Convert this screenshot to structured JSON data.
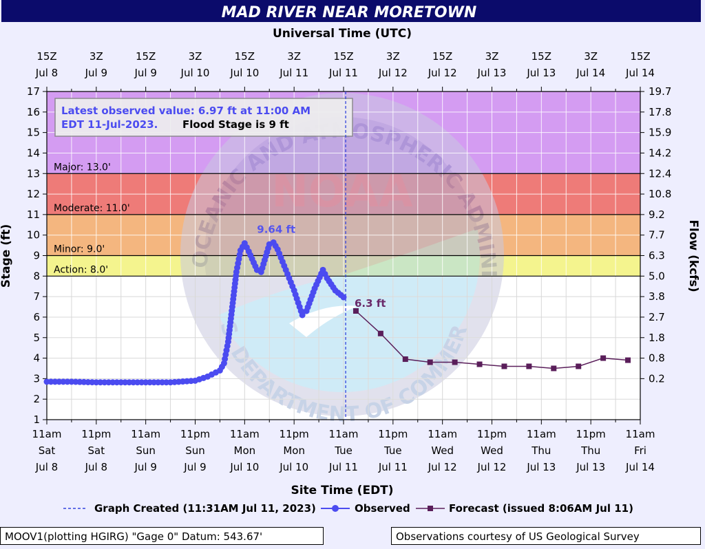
{
  "chart_data": {
    "type": "line",
    "title": "MAD RIVER NEAR MORETOWN",
    "top_axis_title": "Universal Time (UTC)",
    "xlabel": "Site Time (EDT)",
    "ylabel": "Stage (ft)",
    "y2label": "Flow (kcfs)",
    "ylim": [
      1,
      17
    ],
    "yticks": [
      1,
      2,
      3,
      4,
      5,
      6,
      7,
      8,
      9,
      10,
      11,
      12,
      13,
      14,
      15,
      16,
      17
    ],
    "y2_ticks": [
      {
        "stage": 17,
        "label": "19.7"
      },
      {
        "stage": 16,
        "label": "17.8"
      },
      {
        "stage": 15,
        "label": "15.9"
      },
      {
        "stage": 14,
        "label": "14.2"
      },
      {
        "stage": 13,
        "label": "12.4"
      },
      {
        "stage": 12,
        "label": "10.8"
      },
      {
        "stage": 11,
        "label": "9.2"
      },
      {
        "stage": 10,
        "label": "7.7"
      },
      {
        "stage": 9,
        "label": "6.3"
      },
      {
        "stage": 8,
        "label": "5.0"
      },
      {
        "stage": 7,
        "label": "3.8"
      },
      {
        "stage": 6,
        "label": "2.7"
      },
      {
        "stage": 5,
        "label": "1.8"
      },
      {
        "stage": 4,
        "label": "0.8"
      },
      {
        "stage": 3,
        "label": "0.2"
      }
    ],
    "bottom_ticks": [
      [
        "11am",
        "Sat",
        "Jul 8"
      ],
      [
        "11pm",
        "Sat",
        "Jul 8"
      ],
      [
        "11am",
        "Sun",
        "Jul 9"
      ],
      [
        "11pm",
        "Sun",
        "Jul 9"
      ],
      [
        "11am",
        "Mon",
        "Jul 10"
      ],
      [
        "11pm",
        "Mon",
        "Jul 10"
      ],
      [
        "11am",
        "Tue",
        "Jul 11"
      ],
      [
        "11pm",
        "Tue",
        "Jul 11"
      ],
      [
        "11am",
        "Wed",
        "Jul 12"
      ],
      [
        "11pm",
        "Wed",
        "Jul 12"
      ],
      [
        "11am",
        "Thu",
        "Jul 13"
      ],
      [
        "11pm",
        "Thu",
        "Jul 13"
      ],
      [
        "11am",
        "Fri",
        "Jul 14"
      ]
    ],
    "top_ticks": [
      [
        "15Z",
        "Jul 8"
      ],
      [
        "3Z",
        "Jul 9"
      ],
      [
        "15Z",
        "Jul 9"
      ],
      [
        "3Z",
        "Jul 10"
      ],
      [
        "15Z",
        "Jul 10"
      ],
      [
        "3Z",
        "Jul 11"
      ],
      [
        "15Z",
        "Jul 11"
      ],
      [
        "3Z",
        "Jul 12"
      ],
      [
        "15Z",
        "Jul 12"
      ],
      [
        "3Z",
        "Jul 13"
      ],
      [
        "15Z",
        "Jul 13"
      ],
      [
        "3Z",
        "Jul 14"
      ],
      [
        "15Z",
        "Jul 14"
      ]
    ],
    "bands": [
      {
        "from": 13,
        "to": 17,
        "color": "#d49cf2",
        "label": "Major: 13.0'"
      },
      {
        "from": 11,
        "to": 13,
        "color": "#ee7b78",
        "label": "Moderate: 11.0'"
      },
      {
        "from": 9,
        "to": 11,
        "color": "#f4b67f",
        "label": "Minor: 9.0'"
      },
      {
        "from": 8,
        "to": 9,
        "color": "#f4f48e",
        "label": "Action: 8.0'"
      }
    ],
    "info_box": {
      "observed": "Latest observed value: 6.97 ft at 11:00 AM",
      "observed_line2": "EDT 11-Jul-2023.",
      "flood_stage": "Flood Stage is 9 ft"
    },
    "annotations": [
      {
        "text": "9.64 ft",
        "x": "Jul 10 5pm",
        "y": 9.64,
        "color": "#5555ee"
      },
      {
        "text": "6.3 ft",
        "x": "Jul 11 12pm",
        "y": 6.3,
        "color": "#6a2a6a"
      }
    ],
    "graph_created": "Jul 11 11:31am",
    "colors": {
      "observed": "#4b4bf0",
      "forecast": "#5a1e5a",
      "created_line": "#3344dd",
      "title_bg": "#0b0b6b"
    },
    "series": [
      {
        "name": "Observed",
        "x": [
          "Jul 8 11am",
          "Jul 8 5pm",
          "Jul 8 11pm",
          "Jul 9 5am",
          "Jul 9 11am",
          "Jul 9 5pm",
          "Jul 9 11pm",
          "Jul 10 2am",
          "Jul 10 5am",
          "Jul 10 6am",
          "Jul 10 7am",
          "Jul 10 8am",
          "Jul 10 9am",
          "Jul 10 10am",
          "Jul 10 11am",
          "Jul 10 12pm",
          "Jul 10 2pm",
          "Jul 10 3pm",
          "Jul 10 5pm",
          "Jul 10 6pm",
          "Jul 10 7pm",
          "Jul 10 9pm",
          "Jul 10 11pm",
          "Jul 11 12am",
          "Jul 11 1am",
          "Jul 11 2am",
          "Jul 11 4am",
          "Jul 11 6am",
          "Jul 11 7am",
          "Jul 11 9am",
          "Jul 11 11am"
        ],
        "y": [
          2.85,
          2.85,
          2.82,
          2.82,
          2.82,
          2.82,
          2.9,
          3.1,
          3.4,
          3.75,
          4.8,
          6.5,
          8.2,
          9.25,
          9.6,
          9.2,
          8.3,
          8.2,
          9.55,
          9.64,
          9.3,
          8.3,
          7.3,
          6.7,
          6.1,
          6.3,
          7.4,
          8.3,
          7.9,
          7.3,
          6.97
        ]
      },
      {
        "name": "Forecast (issued 8:06AM Jul 11)",
        "x": [
          "Jul 11 2pm",
          "Jul 11 8pm",
          "Jul 12 2am",
          "Jul 12 8am",
          "Jul 12 2pm",
          "Jul 12 8pm",
          "Jul 13 2am",
          "Jul 13 8am",
          "Jul 13 2pm",
          "Jul 13 8pm",
          "Jul 14 2am",
          "Jul 14 8am"
        ],
        "y": [
          6.3,
          5.2,
          3.95,
          3.8,
          3.8,
          3.7,
          3.6,
          3.6,
          3.5,
          3.6,
          4.0,
          3.9
        ]
      }
    ]
  },
  "legend": {
    "created": "Graph Created (11:31AM Jul 11, 2023)",
    "observed": "Observed",
    "forecast": "Forecast (issued 8:06AM Jul 11)"
  },
  "footer": {
    "left": "MOOV1(plotting HGIRG) \"Gage 0\" Datum: 543.67'",
    "right": "Observations courtesy of US Geological Survey"
  },
  "watermark": {
    "top_arc": "NATIONAL OCEANIC AND ATMOSPHERIC ADMINISTRATION",
    "bottom_arc": "U.S. DEPARTMENT OF COMMERCE",
    "center": "NOAA"
  }
}
